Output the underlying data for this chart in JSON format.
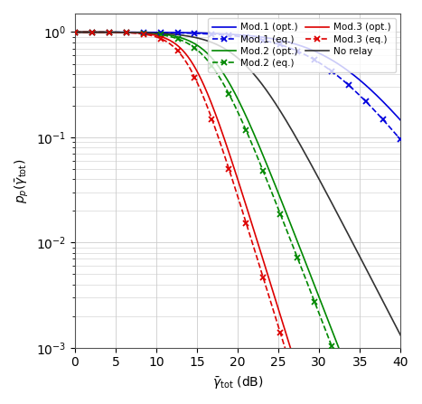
{
  "xlim": [
    0,
    40
  ],
  "ylim": [
    0.001,
    1.5
  ],
  "xlabel": "$\\bar{\\gamma}_{\\mathrm{tot}}$ (dB)",
  "ylabel": "$p_p(\\bar{\\gamma}_{\\mathrm{tot}})$",
  "xticks": [
    0,
    5,
    10,
    15,
    20,
    25,
    30,
    35,
    40
  ],
  "curves": [
    {
      "name": "mod1_opt",
      "d": 1.0,
      "c": 1700.0,
      "color": "#0000dd",
      "ls": "-",
      "marker": null,
      "label": "Mod.1 (opt.)"
    },
    {
      "name": "mod1_eq",
      "d": 1.0,
      "c": 1050.0,
      "color": "#0000dd",
      "ls": "--",
      "marker": "x",
      "label": "Mod.1 (eq.)"
    },
    {
      "name": "mod2_opt",
      "d": 2.0,
      "c": 55.0,
      "color": "#008800",
      "ls": "-",
      "marker": null,
      "label": "Mod.2 (opt.)"
    },
    {
      "name": "mod2_eq",
      "d": 2.0,
      "c": 46.0,
      "color": "#008800",
      "ls": "--",
      "marker": "x",
      "label": "Mod.2 (eq.)"
    },
    {
      "name": "mod3_opt",
      "d": 2.5,
      "c": 28.0,
      "color": "#dd0000",
      "ls": "-",
      "marker": null,
      "label": "Mod.3 (opt.)"
    },
    {
      "name": "mod3_eq",
      "d": 2.5,
      "c": 24.0,
      "color": "#dd0000",
      "ls": "--",
      "marker": "x",
      "label": "Mod.3 (eq.)"
    },
    {
      "name": "norelay",
      "d": 1.5,
      "c": 120.0,
      "color": "#333333",
      "ls": "-",
      "marker": null,
      "label": "No relay"
    }
  ],
  "n_markers": 20,
  "marker_size": 5,
  "line_width": 1.2,
  "legend_fontsize": 7.5,
  "grid_color": "#cccccc",
  "background_color": "#ffffff"
}
